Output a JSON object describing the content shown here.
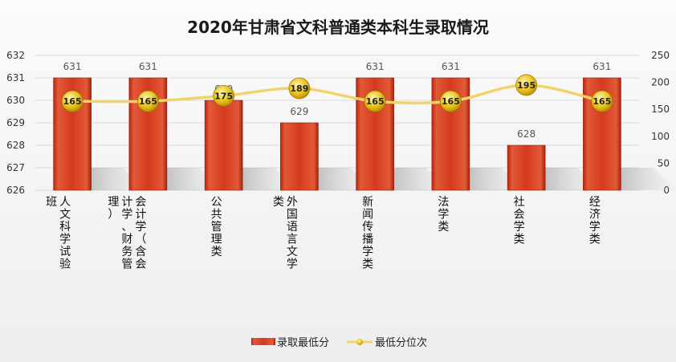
{
  "chart_data": {
    "type": "bar",
    "title": "2020年甘肃省文科普通类本科生录取情况",
    "categories": [
      "人文科学试验班",
      "会计学（含会计学、财务管理）",
      "公共管理类",
      "外国语言文学类",
      "新闻传播学类",
      "法学类",
      "社会学类",
      "经济学类"
    ],
    "series": [
      {
        "name": "录取最低分",
        "type": "bar",
        "axis": "left",
        "color": "#d43a1f",
        "values": [
          631,
          631,
          630,
          629,
          631,
          631,
          628,
          631
        ]
      },
      {
        "name": "最低分位次",
        "type": "line",
        "axis": "right",
        "color": "#f2d36b",
        "marker_color": "#e8c21a",
        "values": [
          165,
          165,
          175,
          189,
          165,
          165,
          195,
          165
        ]
      }
    ],
    "y_left": {
      "min": 626,
      "max": 632,
      "ticks": [
        626,
        627,
        628,
        629,
        630,
        631,
        632
      ]
    },
    "y_right": {
      "min": 0,
      "max": 250,
      "ticks": [
        0,
        50,
        100,
        150,
        200,
        250
      ]
    },
    "grid": true,
    "legend_position": "bottom"
  }
}
